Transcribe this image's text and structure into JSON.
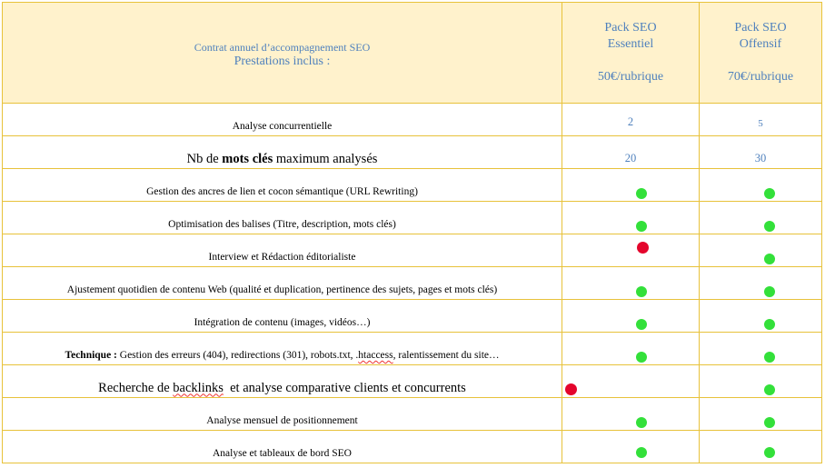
{
  "header": {
    "line1": "Contrat annuel d’accompagnement SEO",
    "line2": "Prestations inclus :",
    "packs": [
      {
        "name1": "Pack SEO",
        "name2": "Essentiel",
        "price": "50€/rubrique"
      },
      {
        "name1": "Pack SEO",
        "name2": "Offensif",
        "price": "70€/rubrique"
      }
    ]
  },
  "rows": [
    {
      "label": "Analyse concurrentielle",
      "essentiel": "2",
      "offensif": "5"
    },
    {
      "label_pre": "Nb de ",
      "label_bold": "mots clés",
      "label_post": " maximum analysés",
      "essentiel": "20",
      "offensif": "30"
    },
    {
      "label": "Gestion des ancres de lien et cocon sémantique (URL Rewriting)",
      "essentiel_status": "included",
      "offensif_status": "included"
    },
    {
      "label": "Optimisation des balises (Titre, description, mots clés)",
      "essentiel_status": "included",
      "offensif_status": "included"
    },
    {
      "label": "Interview et Rédaction éditorialiste",
      "essentiel_status": "not-included",
      "offensif_status": "included"
    },
    {
      "label": "Ajustement quotidien de contenu Web (qualité et duplication, pertinence des sujets, pages et mots clés)",
      "essentiel_status": "included",
      "offensif_status": "included"
    },
    {
      "label": "Intégration de contenu (images, vidéos…)",
      "essentiel_status": "included",
      "offensif_status": "included"
    },
    {
      "label_bold": "Technique :",
      "label_post": " Gestion des erreurs (404), redirections (301), robots.txt, .",
      "label_squig": "htaccess",
      "label_end": ", ralentissement du site…",
      "essentiel_status": "included",
      "offensif_status": "included"
    },
    {
      "label_pre": "Recherche de ",
      "label_squig": "backlinks",
      "label_post": "  et analyse comparative clients et concurrents",
      "essentiel_status": "not-included",
      "offensif_status": "included"
    },
    {
      "label": "Analyse mensuel de positionnement",
      "essentiel_status": "included",
      "offensif_status": "included"
    },
    {
      "label": "Analyse et tableaux de bord SEO",
      "essentiel_status": "included",
      "offensif_status": "included"
    }
  ],
  "colors": {
    "included": "#33e03a",
    "not_included": "#e4052c",
    "border": "#e8c23a",
    "header_bg": "#fff2cc",
    "accent_text": "#4f81bd"
  }
}
